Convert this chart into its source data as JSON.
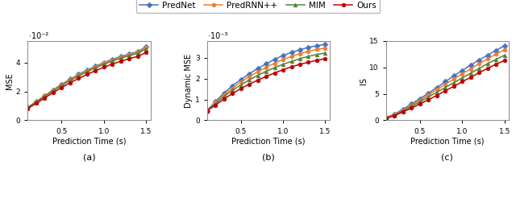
{
  "x": [
    0.1,
    0.2,
    0.3,
    0.4,
    0.5,
    0.6,
    0.7,
    0.8,
    0.9,
    1.0,
    1.1,
    1.2,
    1.3,
    1.4,
    1.5
  ],
  "mse": {
    "PredNet": [
      0.009,
      0.013,
      0.017,
      0.021,
      0.025,
      0.0285,
      0.0318,
      0.0348,
      0.0375,
      0.04,
      0.0422,
      0.0442,
      0.046,
      0.0476,
      0.051
    ],
    "PredRNN++": [
      0.009,
      0.013,
      0.017,
      0.021,
      0.0248,
      0.0282,
      0.0314,
      0.0344,
      0.0371,
      0.0396,
      0.0418,
      0.0438,
      0.0456,
      0.0472,
      0.0505
    ],
    "MIM": [
      0.0088,
      0.0127,
      0.0166,
      0.0205,
      0.0242,
      0.0276,
      0.0307,
      0.0336,
      0.0363,
      0.0388,
      0.041,
      0.043,
      0.0448,
      0.0464,
      0.0495
    ],
    "Ours": [
      0.0082,
      0.0118,
      0.0155,
      0.0192,
      0.0227,
      0.026,
      0.029,
      0.0318,
      0.0344,
      0.0368,
      0.039,
      0.0409,
      0.0427,
      0.0443,
      0.047
    ]
  },
  "dynamic_mse": {
    "PredNet": [
      0.00046,
      0.0009,
      0.0013,
      0.00165,
      0.00195,
      0.00222,
      0.00248,
      0.0027,
      0.00292,
      0.0031,
      0.00325,
      0.00338,
      0.00349,
      0.00357,
      0.00363
    ],
    "PredRNN++": [
      0.00046,
      0.00085,
      0.00122,
      0.00154,
      0.00183,
      0.00209,
      0.00232,
      0.00254,
      0.00273,
      0.00291,
      0.00306,
      0.00319,
      0.0033,
      0.00339,
      0.00346
    ],
    "MIM": [
      0.00046,
      0.0008,
      0.00114,
      0.00143,
      0.00169,
      0.00193,
      0.00215,
      0.00234,
      0.00252,
      0.00268,
      0.00282,
      0.00295,
      0.00306,
      0.00315,
      0.00322
    ],
    "Ours": [
      0.00046,
      0.00072,
      0.00102,
      0.00128,
      0.00152,
      0.00173,
      0.00192,
      0.0021,
      0.00227,
      0.00242,
      0.00256,
      0.00268,
      0.00278,
      0.00287,
      0.00295
    ]
  },
  "is": {
    "PredNet": [
      0.5,
      1.2,
      2.1,
      3.1,
      4.1,
      5.1,
      6.2,
      7.3,
      8.4,
      9.4,
      10.4,
      11.4,
      12.3,
      13.2,
      14.1
    ],
    "PredRNN++": [
      0.5,
      1.1,
      1.9,
      2.8,
      3.8,
      4.8,
      5.8,
      6.8,
      7.8,
      8.8,
      9.7,
      10.7,
      11.6,
      12.5,
      13.3
    ],
    "MIM": [
      0.4,
      1.0,
      1.8,
      2.6,
      3.5,
      4.4,
      5.3,
      6.2,
      7.1,
      8.0,
      8.9,
      9.8,
      10.7,
      11.5,
      12.3
    ],
    "Ours": [
      0.4,
      0.9,
      1.6,
      2.3,
      3.1,
      3.9,
      4.7,
      5.6,
      6.4,
      7.3,
      8.1,
      9.0,
      9.8,
      10.6,
      11.3
    ]
  },
  "colors": {
    "PredNet": "#4472C4",
    "PredRNN++": "#ED7D31",
    "MIM": "#548235",
    "Ours": "#C00000"
  },
  "markers": {
    "PredNet": "D",
    "PredRNN++": "o",
    "MIM": "^",
    "Ours": "o"
  },
  "legend_labels": [
    "PredNet",
    "PredRNN++",
    "MIM",
    "Ours"
  ],
  "xlabel": "Prediction Time (s)",
  "ylabels": [
    "MSE",
    "Dynamic MSE",
    "IS"
  ],
  "subplot_labels": [
    "(a)",
    "(b)",
    "(c)"
  ],
  "mse_ylim": [
    0,
    0.055
  ],
  "dmse_ylim": [
    0,
    0.0038
  ],
  "is_ylim": [
    0,
    15
  ],
  "mse_yticks": [
    0,
    0.02,
    0.04
  ],
  "dmse_yticks": [
    0,
    0.001,
    0.002,
    0.003
  ],
  "is_yticks": [
    0,
    5,
    10,
    15
  ],
  "scale_factors": [
    0.01,
    0.001,
    1
  ],
  "scale_texts": [
    "·10⁻²",
    "·10⁻³",
    null
  ],
  "background_color": "#ffffff"
}
